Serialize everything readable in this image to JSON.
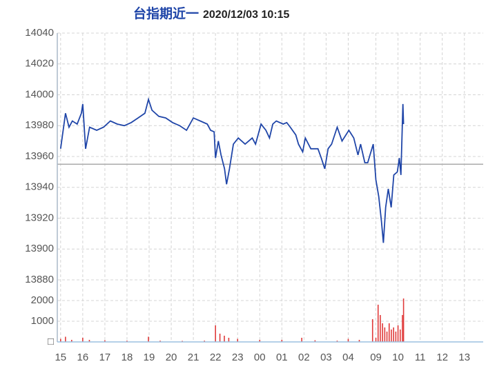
{
  "chart_data": [
    {
      "type": "line",
      "title": "台指期近一",
      "subtitle": "2020/12/03 10:15",
      "x": [
        0,
        0.22,
        0.38,
        0.53,
        0.75,
        0.94,
        1.0,
        1.13,
        1.31,
        1.63,
        1.94,
        2.25,
        2.56,
        2.88,
        3.19,
        3.5,
        3.81,
        3.97,
        4.13,
        4.44,
        4.75,
        5.06,
        5.38,
        5.69,
        6.0,
        6.31,
        6.63,
        6.78,
        6.94,
        7.0,
        7.13,
        7.25,
        7.41,
        7.5,
        7.63,
        7.81,
        8.03,
        8.34,
        8.66,
        8.81,
        9.06,
        9.28,
        9.44,
        9.59,
        9.75,
        10.06,
        10.22,
        10.38,
        10.63,
        10.75,
        10.94,
        11.06,
        11.31,
        11.63,
        11.78,
        11.94,
        12.09,
        12.25,
        12.5,
        12.72,
        13.03,
        13.25,
        13.44,
        13.56,
        13.75,
        13.88,
        14.13,
        14.25,
        14.38,
        14.5,
        14.59,
        14.69,
        14.81,
        14.94,
        15.06,
        15.22,
        15.31,
        15.38,
        15.47,
        15.5
      ],
      "values": [
        13965,
        13988,
        13979,
        13983,
        13981,
        13988,
        13994,
        13965,
        13979,
        13977,
        13979,
        13983,
        13981,
        13980,
        13982,
        13985,
        13988,
        13997,
        13990,
        13986,
        13985,
        13982,
        13980,
        13977,
        13985,
        13983,
        13981,
        13977,
        13976,
        13959,
        13970,
        13961,
        13952,
        13942,
        13952,
        13968,
        13972,
        13968,
        13972,
        13968,
        13981,
        13977,
        13972,
        13981,
        13983,
        13981,
        13982,
        13979,
        13974,
        13968,
        13963,
        13972,
        13965,
        13965,
        13959,
        13952,
        13965,
        13968,
        13979,
        13970,
        13977,
        13972,
        13961,
        13968,
        13956,
        13956,
        13968,
        13945,
        13934,
        13918,
        13904,
        13927,
        13939,
        13927,
        13948,
        13950,
        13959,
        13948,
        13994,
        13981
      ],
      "color": "#1f45a8",
      "xlim": [
        -0.15,
        19.1
      ],
      "ylim": [
        13880,
        14040
      ],
      "yticks": [
        13880,
        13900,
        13920,
        13940,
        13960,
        13980,
        14000,
        14020,
        14040
      ],
      "reference_line": 13955,
      "reference_color": "#aaaaaa",
      "grid": true
    },
    {
      "type": "bar",
      "x": [
        0,
        0.22,
        0.5,
        1.0,
        1.3,
        2,
        3,
        3.97,
        4.5,
        5.5,
        6.5,
        7.0,
        7.2,
        7.4,
        7.6,
        8,
        9,
        10,
        10.9,
        11.5,
        12.5,
        13,
        13.5,
        14.1,
        14.25,
        14.35,
        14.45,
        14.55,
        14.65,
        14.75,
        14.85,
        14.95,
        15.05,
        15.15,
        15.25,
        15.35,
        15.45,
        15.5
      ],
      "values": [
        150,
        250,
        100,
        200,
        100,
        80,
        60,
        250,
        60,
        50,
        60,
        800,
        400,
        300,
        200,
        150,
        100,
        100,
        200,
        80,
        60,
        150,
        100,
        1100,
        200,
        1800,
        1300,
        900,
        700,
        500,
        900,
        600,
        700,
        500,
        800,
        600,
        1300,
        2100
      ],
      "color": "#e03a3a",
      "xlim": [
        -0.15,
        19.1
      ],
      "ylim": [
        0,
        3000
      ],
      "yticks": [
        {
          "value": 0,
          "label": "□"
        },
        1000,
        2000
      ],
      "xticks": [
        {
          "value": 0,
          "label": "15"
        },
        {
          "value": 1,
          "label": "16"
        },
        {
          "value": 2,
          "label": "17"
        },
        {
          "value": 3,
          "label": "18"
        },
        {
          "value": 4,
          "label": "19"
        },
        {
          "value": 5,
          "label": "20"
        },
        {
          "value": 6,
          "label": "21"
        },
        {
          "value": 7,
          "label": "22"
        },
        {
          "value": 8,
          "label": "23"
        },
        {
          "value": 9,
          "label": "00"
        },
        {
          "value": 10,
          "label": "01"
        },
        {
          "value": 11,
          "label": "02"
        },
        {
          "value": 12,
          "label": "03"
        },
        {
          "value": 13,
          "label": "04"
        },
        {
          "value": 14.25,
          "label": "09"
        },
        {
          "value": 15.25,
          "label": "10"
        },
        {
          "value": 16.25,
          "label": "11"
        },
        {
          "value": 17.25,
          "label": "12"
        },
        {
          "value": 18.25,
          "label": "13"
        }
      ],
      "grid": true
    }
  ]
}
